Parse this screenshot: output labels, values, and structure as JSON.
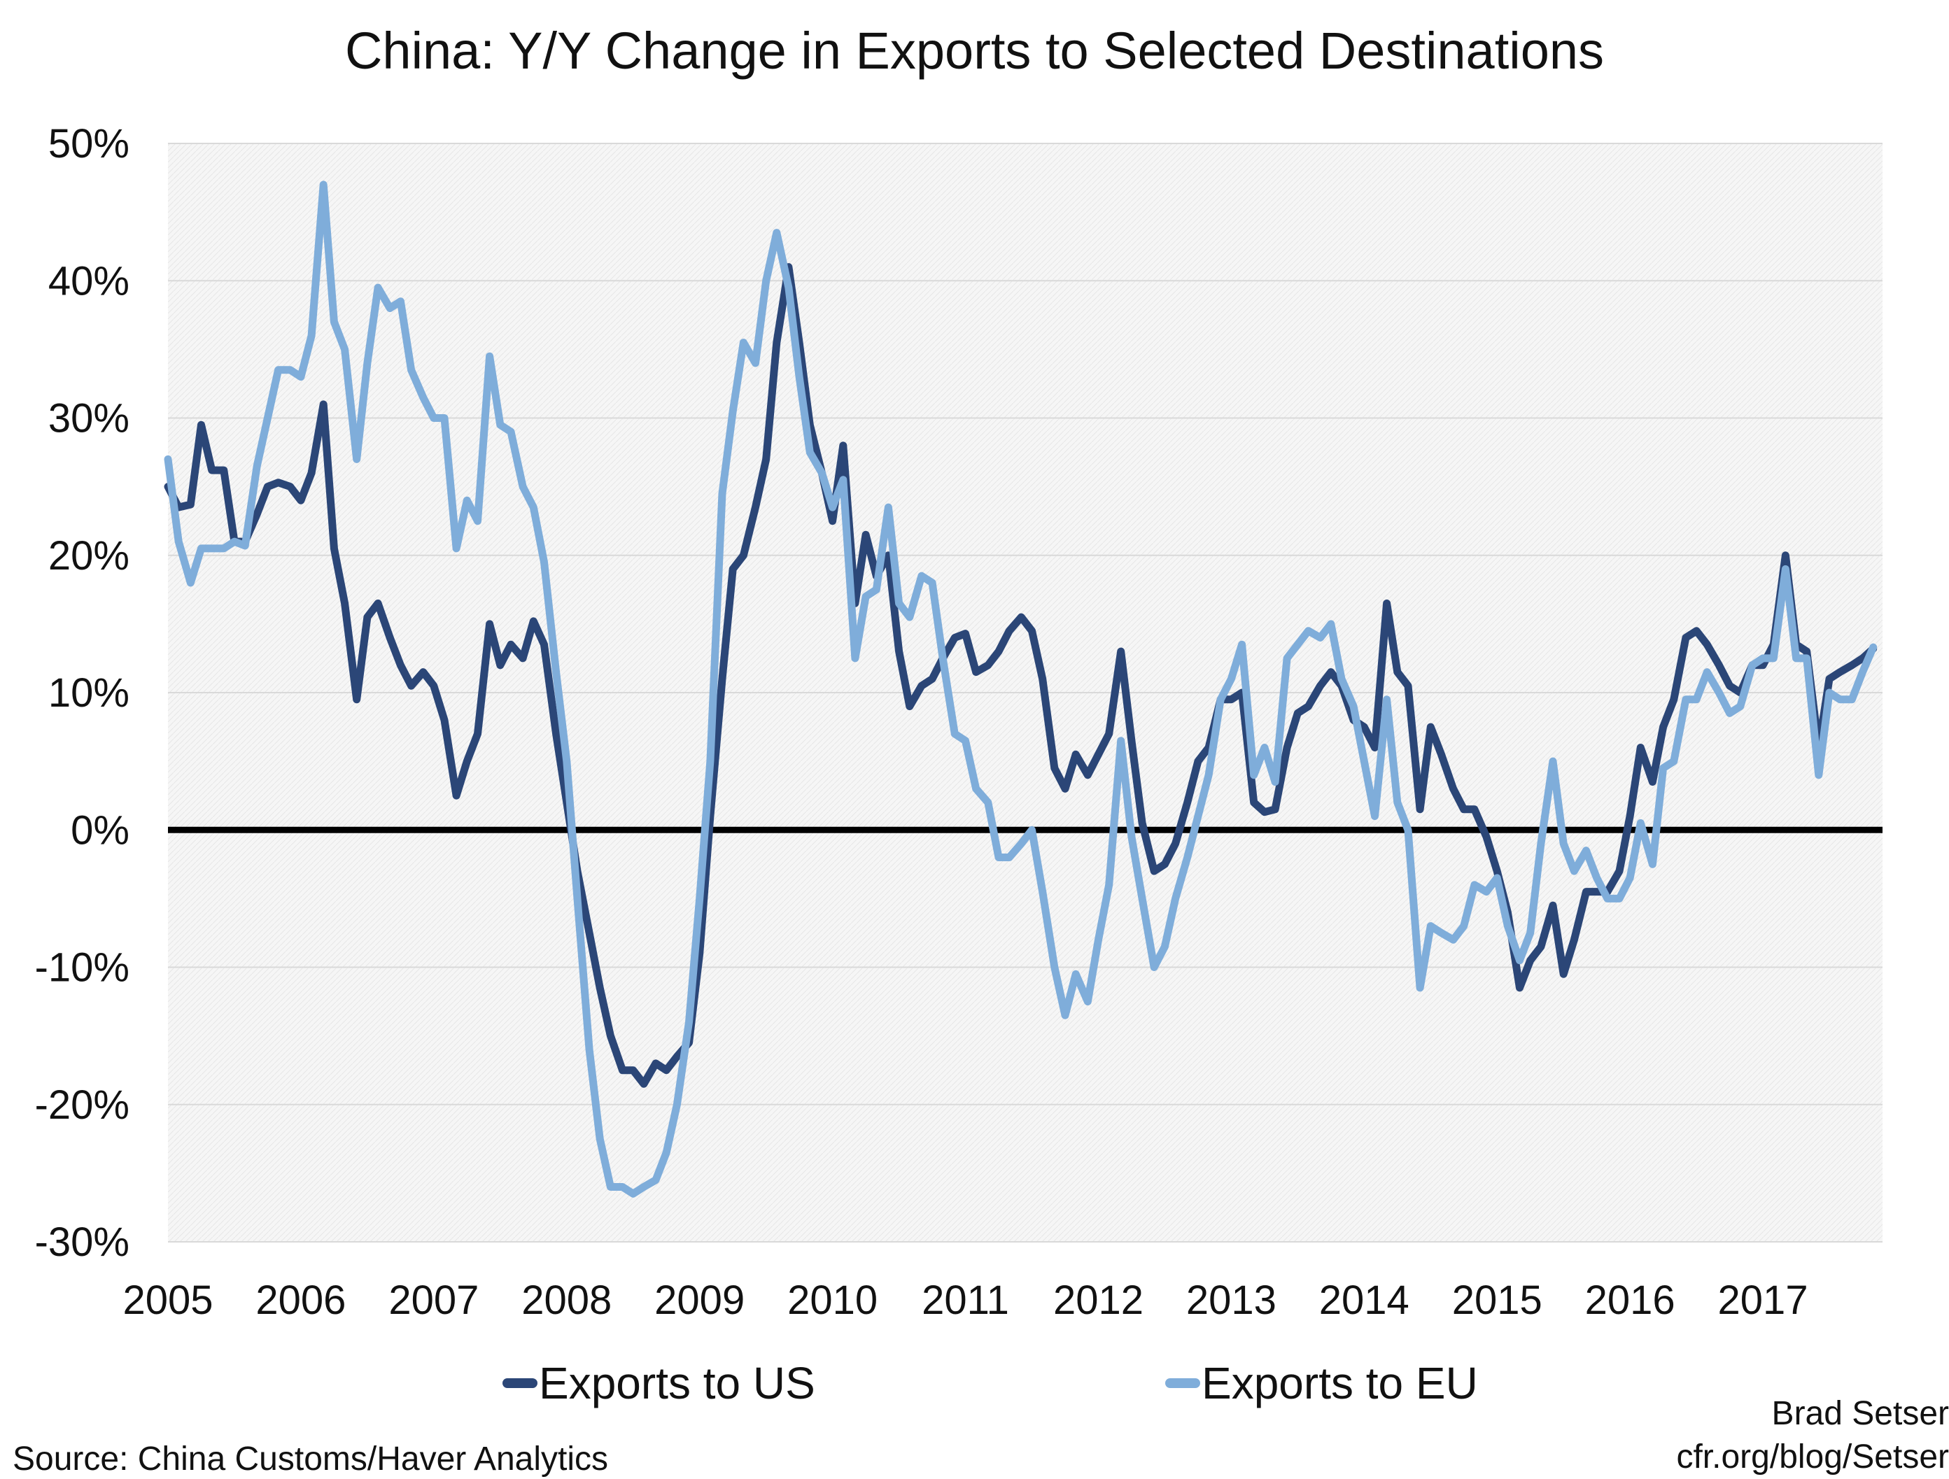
{
  "chart_data": {
    "type": "line",
    "title": "China: Y/Y Change in Exports to Selected Destinations",
    "xlabel": "",
    "ylabel": "",
    "x_tick_labels": [
      "2005",
      "2006",
      "2007",
      "2008",
      "2009",
      "2010",
      "2011",
      "2012",
      "2013",
      "2014",
      "2015",
      "2016",
      "2017"
    ],
    "y_tick_labels": [
      "50%",
      "40%",
      "30%",
      "20%",
      "10%",
      "0%",
      "-10%",
      "-20%",
      "-30%"
    ],
    "xlim": [
      2005.0,
      2017.9
    ],
    "ylim": [
      -30,
      50
    ],
    "y_unit": "%",
    "grid": true,
    "zero_line": true,
    "legend_position": "bottom",
    "series": [
      {
        "name": "Exports to US",
        "color": "#2b4677",
        "x": [
          2005.0,
          2005.08,
          2005.17,
          2005.25,
          2005.33,
          2005.42,
          2005.5,
          2005.58,
          2005.67,
          2005.75,
          2005.83,
          2005.92,
          2006.0,
          2006.08,
          2006.17,
          2006.25,
          2006.33,
          2006.42,
          2006.5,
          2006.58,
          2006.67,
          2006.75,
          2006.83,
          2006.92,
          2007.0,
          2007.08,
          2007.17,
          2007.25,
          2007.33,
          2007.42,
          2007.5,
          2007.58,
          2007.67,
          2007.75,
          2007.83,
          2007.92,
          2008.0,
          2008.08,
          2008.17,
          2008.25,
          2008.33,
          2008.42,
          2008.5,
          2008.58,
          2008.67,
          2008.75,
          2008.83,
          2008.92,
          2009.0,
          2009.08,
          2009.17,
          2009.25,
          2009.33,
          2009.42,
          2009.5,
          2009.58,
          2009.67,
          2009.75,
          2009.83,
          2009.92,
          2010.0,
          2010.08,
          2010.17,
          2010.25,
          2010.33,
          2010.42,
          2010.5,
          2010.58,
          2010.67,
          2010.75,
          2010.83,
          2010.92,
          2011.0,
          2011.08,
          2011.17,
          2011.25,
          2011.33,
          2011.42,
          2011.5,
          2011.58,
          2011.67,
          2011.75,
          2011.83,
          2011.92,
          2012.0,
          2012.08,
          2012.17,
          2012.25,
          2012.33,
          2012.42,
          2012.5,
          2012.58,
          2012.67,
          2012.75,
          2012.83,
          2012.92,
          2013.0,
          2013.08,
          2013.17,
          2013.25,
          2013.33,
          2013.42,
          2013.5,
          2013.58,
          2013.67,
          2013.75,
          2013.83,
          2013.92,
          2014.0,
          2014.08,
          2014.17,
          2014.25,
          2014.33,
          2014.42,
          2014.5,
          2014.58,
          2014.67,
          2014.75,
          2014.83,
          2014.92,
          2015.0,
          2015.08,
          2015.17,
          2015.25,
          2015.33,
          2015.42,
          2015.5,
          2015.58,
          2015.67,
          2015.75,
          2015.83,
          2015.92,
          2016.0,
          2016.08,
          2016.17,
          2016.25,
          2016.33,
          2016.42,
          2016.5,
          2016.58,
          2016.67,
          2016.75,
          2016.83,
          2016.92,
          2017.0,
          2017.08,
          2017.17,
          2017.25,
          2017.33,
          2017.42,
          2017.5,
          2017.58,
          2017.67,
          2017.75,
          2017.83
        ],
        "values": [
          25.0,
          23.5,
          23.7,
          29.5,
          26.2,
          26.2,
          21.0,
          21.0,
          23.0,
          25.0,
          25.3,
          25.0,
          24.0,
          26.0,
          31.0,
          20.5,
          16.5,
          9.5,
          15.5,
          16.5,
          14.0,
          12.0,
          10.5,
          11.5,
          10.5,
          8.0,
          2.5,
          5.0,
          7.0,
          15.0,
          12.0,
          13.5,
          12.5,
          15.2,
          13.5,
          7.0,
          2.0,
          -3.0,
          -7.5,
          -11.5,
          -15.0,
          -17.5,
          -17.5,
          -18.5,
          -17.0,
          -17.5,
          -16.5,
          -15.5,
          -9.0,
          1.0,
          11.0,
          19.0,
          20.0,
          23.5,
          27.0,
          35.5,
          41.0,
          35.5,
          29.5,
          26.0,
          22.5,
          28.0,
          16.5,
          21.5,
          18.5,
          20.0,
          13.0,
          9.0,
          10.5,
          11.0,
          12.5,
          14.0,
          14.3,
          11.5,
          12.0,
          13.0,
          14.5,
          15.5,
          14.5,
          11.0,
          4.5,
          3.0,
          5.5,
          4.0,
          5.5,
          7.0,
          13.0,
          6.5,
          0.5,
          -3.0,
          -2.5,
          -1.0,
          2.0,
          5.0,
          6.0,
          9.5,
          9.5,
          10.0,
          2.0,
          1.3,
          1.5,
          6.0,
          8.5,
          9.0,
          10.5,
          11.5,
          10.5,
          8.0,
          7.5,
          6.0,
          16.5,
          11.5,
          10.5,
          1.5,
          7.5,
          5.5,
          3.0,
          1.5,
          1.5,
          -0.5,
          -3.0,
          -6.0,
          -11.5,
          -9.5,
          -8.5,
          -5.5,
          -10.5,
          -8.0,
          -4.5,
          -4.5,
          -4.5,
          -3.0,
          1.0,
          6.0,
          3.5,
          7.5,
          9.5,
          14.0,
          14.5,
          13.5,
          12.0,
          10.5,
          10.0,
          12.0,
          12.0,
          13.5,
          20.0,
          13.5,
          13.0,
          6.0,
          11.0,
          11.5,
          12.0,
          12.5,
          13.2
        ]
      },
      {
        "name": "Exports to EU",
        "color": "#7fadda",
        "x": [
          2005.0,
          2005.08,
          2005.17,
          2005.25,
          2005.33,
          2005.42,
          2005.5,
          2005.58,
          2005.67,
          2005.75,
          2005.83,
          2005.92,
          2006.0,
          2006.08,
          2006.17,
          2006.25,
          2006.33,
          2006.42,
          2006.5,
          2006.58,
          2006.67,
          2006.75,
          2006.83,
          2006.92,
          2007.0,
          2007.08,
          2007.17,
          2007.25,
          2007.33,
          2007.42,
          2007.5,
          2007.58,
          2007.67,
          2007.75,
          2007.83,
          2007.92,
          2008.0,
          2008.08,
          2008.17,
          2008.25,
          2008.33,
          2008.42,
          2008.5,
          2008.58,
          2008.67,
          2008.75,
          2008.83,
          2008.92,
          2009.0,
          2009.08,
          2009.17,
          2009.25,
          2009.33,
          2009.42,
          2009.5,
          2009.58,
          2009.67,
          2009.75,
          2009.83,
          2009.92,
          2010.0,
          2010.08,
          2010.17,
          2010.25,
          2010.33,
          2010.42,
          2010.5,
          2010.58,
          2010.67,
          2010.75,
          2010.83,
          2010.92,
          2011.0,
          2011.08,
          2011.17,
          2011.25,
          2011.33,
          2011.42,
          2011.5,
          2011.58,
          2011.67,
          2011.75,
          2011.83,
          2011.92,
          2012.0,
          2012.08,
          2012.17,
          2012.25,
          2012.33,
          2012.42,
          2012.5,
          2012.58,
          2012.67,
          2012.75,
          2012.83,
          2012.92,
          2013.0,
          2013.08,
          2013.17,
          2013.25,
          2013.33,
          2013.42,
          2013.5,
          2013.58,
          2013.67,
          2013.75,
          2013.83,
          2013.92,
          2014.0,
          2014.08,
          2014.17,
          2014.25,
          2014.33,
          2014.42,
          2014.5,
          2014.58,
          2014.67,
          2014.75,
          2014.83,
          2014.92,
          2015.0,
          2015.08,
          2015.17,
          2015.25,
          2015.33,
          2015.42,
          2015.5,
          2015.58,
          2015.67,
          2015.75,
          2015.83,
          2015.92,
          2016.0,
          2016.08,
          2016.17,
          2016.25,
          2016.33,
          2016.42,
          2016.5,
          2016.58,
          2016.67,
          2016.75,
          2016.83,
          2016.92,
          2017.0,
          2017.08,
          2017.17,
          2017.25,
          2017.33,
          2017.42,
          2017.5,
          2017.58,
          2017.67,
          2017.75,
          2017.83
        ],
        "values": [
          27.0,
          21.0,
          18.0,
          20.5,
          20.5,
          20.5,
          21.0,
          20.7,
          26.5,
          30.0,
          33.5,
          33.5,
          33.0,
          36.0,
          47.0,
          37.0,
          35.0,
          27.0,
          34.0,
          39.5,
          38.0,
          38.5,
          33.5,
          31.5,
          30.0,
          30.0,
          20.5,
          24.0,
          22.5,
          34.5,
          29.5,
          29.0,
          25.0,
          23.5,
          19.5,
          11.5,
          5.0,
          -5.0,
          -16.0,
          -22.5,
          -26.0,
          -26.0,
          -26.5,
          -26.0,
          -25.5,
          -23.5,
          -20.0,
          -14.0,
          -5.0,
          5.0,
          24.5,
          30.5,
          35.5,
          34.0,
          40.0,
          43.5,
          39.5,
          33.0,
          27.5,
          26.0,
          23.5,
          25.5,
          12.5,
          17.0,
          17.5,
          23.5,
          16.5,
          15.5,
          18.5,
          18.0,
          12.5,
          7.0,
          6.5,
          3.0,
          2.0,
          -2.0,
          -2.0,
          -1.0,
          0.0,
          -4.5,
          -10.0,
          -13.5,
          -10.5,
          -12.5,
          -8.0,
          -4.0,
          6.5,
          -0.5,
          -5.0,
          -10.0,
          -8.5,
          -5.0,
          -2.0,
          1.0,
          4.0,
          9.5,
          11.0,
          13.5,
          4.0,
          6.0,
          3.5,
          12.5,
          13.5,
          14.5,
          14.0,
          15.0,
          11.0,
          9.0,
          5.0,
          1.0,
          9.5,
          2.0,
          0.0,
          -11.5,
          -7.0,
          -7.5,
          -8.0,
          -7.0,
          -4.0,
          -4.5,
          -3.5,
          -7.0,
          -9.5,
          -7.5,
          -1.0,
          5.0,
          -1.0,
          -3.0,
          -1.5,
          -3.5,
          -5.0,
          -5.0,
          -3.5,
          0.5,
          -2.5,
          4.5,
          5.0,
          9.5,
          9.5,
          11.5,
          10.0,
          8.5,
          9.0,
          12.0,
          12.5,
          12.5,
          19.0,
          12.5,
          12.5,
          4.0,
          10.0,
          9.5,
          9.5,
          11.5,
          13.3
        ]
      }
    ]
  },
  "legend": {
    "us_label": "Exports to US",
    "eu_label": "Exports to EU"
  },
  "source": "Source: China Customs/Haver Analytics",
  "credit_line1": "Brad Setser",
  "credit_line2": "cfr.org/blog/Setser"
}
